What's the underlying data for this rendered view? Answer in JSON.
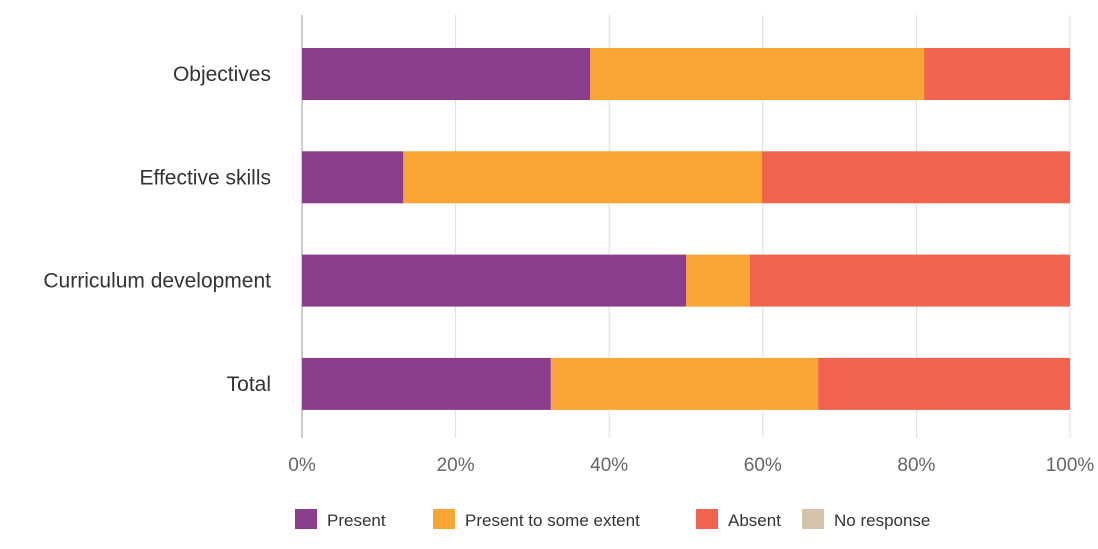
{
  "chart_data": {
    "type": "bar",
    "orientation": "horizontal",
    "stacked": true,
    "percent": true,
    "categories": [
      "Objectives",
      "Effective skills",
      "Curriculum development",
      "Total"
    ],
    "series": [
      {
        "name": "Present",
        "color": "#8b3e8c",
        "values": [
          37.5,
          13.2,
          50.0,
          32.4
        ]
      },
      {
        "name": "Present to some extent",
        "color": "#f8a535",
        "values": [
          43.5,
          46.7,
          8.3,
          34.8
        ]
      },
      {
        "name": "Absent",
        "color": "#f2634d",
        "values": [
          19.0,
          40.1,
          41.7,
          32.8
        ]
      },
      {
        "name": "No response",
        "color": "#d2c3a9",
        "values": [
          0,
          0,
          0,
          0
        ]
      }
    ],
    "xlim": [
      0,
      100
    ],
    "xticks": [
      "0%",
      "20%",
      "40%",
      "60%",
      "80%",
      "100%"
    ],
    "grid": true,
    "legend_position": "bottom"
  }
}
